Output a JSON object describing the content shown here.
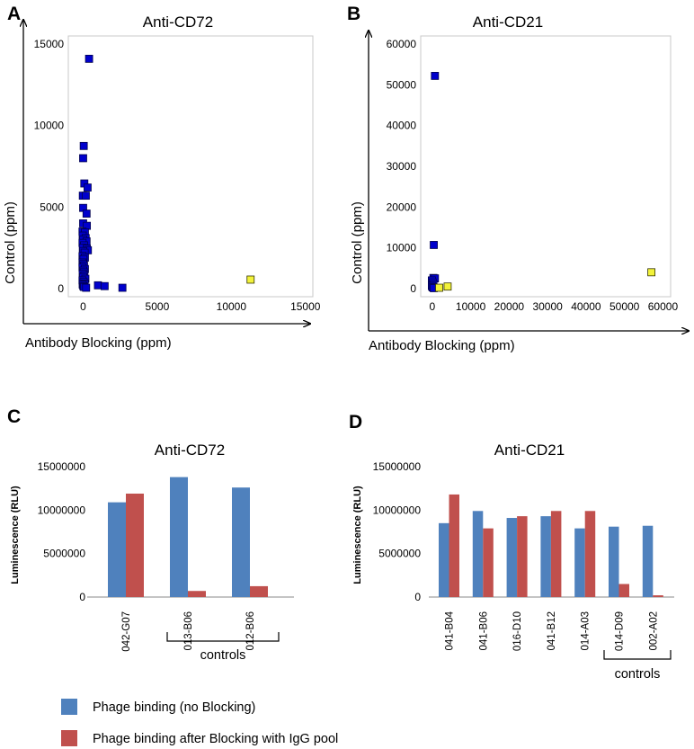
{
  "colors": {
    "scatter_blue": "#0000cc",
    "scatter_yellow": "#f2f23a",
    "bar_blue": "#4f81bd",
    "bar_red": "#c0504d"
  },
  "chart_data": [
    {
      "panel": "A",
      "type": "scatter",
      "title": "Anti-CD72",
      "xlabel": "Antibody Blocking (ppm)",
      "ylabel": "Control  (ppm)",
      "xlim": [
        -1000,
        15500
      ],
      "ylim": [
        -500,
        15500
      ],
      "xticks": [
        0,
        5000,
        10000,
        15000
      ],
      "yticks": [
        0,
        5000,
        10000,
        15000
      ],
      "series": [
        {
          "name": "blue",
          "points": [
            [
              400,
              14100
            ],
            [
              40,
              8750
            ],
            [
              0,
              8000
            ],
            [
              80,
              6450
            ],
            [
              300,
              6200
            ],
            [
              -20,
              5700
            ],
            [
              180,
              5700
            ],
            [
              0,
              4950
            ],
            [
              230,
              4600
            ],
            [
              0,
              4000
            ],
            [
              250,
              3850
            ],
            [
              -40,
              3500
            ],
            [
              120,
              3450
            ],
            [
              -30,
              3250
            ],
            [
              170,
              3100
            ],
            [
              0,
              3000
            ],
            [
              230,
              2900
            ],
            [
              -40,
              2800
            ],
            [
              60,
              2650
            ],
            [
              -20,
              2500
            ],
            [
              250,
              2450
            ],
            [
              320,
              2350
            ],
            [
              0,
              2300
            ],
            [
              100,
              2200
            ],
            [
              -40,
              2000
            ],
            [
              120,
              1900
            ],
            [
              20,
              1800
            ],
            [
              -40,
              1600
            ],
            [
              0,
              1500
            ],
            [
              60,
              1400
            ],
            [
              -40,
              1300
            ],
            [
              120,
              1200
            ],
            [
              0,
              1100
            ],
            [
              40,
              1000
            ],
            [
              -30,
              900
            ],
            [
              80,
              800
            ],
            [
              0,
              700
            ],
            [
              150,
              600
            ],
            [
              -40,
              500
            ],
            [
              30,
              400
            ],
            [
              100,
              300
            ],
            [
              -30,
              250
            ],
            [
              10,
              150
            ],
            [
              60,
              100
            ],
            [
              200,
              50
            ],
            [
              1000,
              200
            ],
            [
              1450,
              150
            ],
            [
              2650,
              50
            ]
          ]
        },
        {
          "name": "yellow",
          "points": [
            [
              11300,
              550
            ]
          ]
        }
      ]
    },
    {
      "panel": "B",
      "type": "scatter",
      "title": "Anti-CD21",
      "xlabel": "Antibody Blocking (ppm)",
      "ylabel": "Control  (ppm)",
      "xlim": [
        -3000,
        62000
      ],
      "ylim": [
        -2000,
        62000
      ],
      "xticks": [
        0,
        10000,
        20000,
        30000,
        40000,
        50000,
        60000
      ],
      "yticks": [
        0,
        10000,
        20000,
        30000,
        40000,
        50000,
        60000
      ],
      "series": [
        {
          "name": "blue",
          "points": [
            [
              700,
              52200
            ],
            [
              400,
              10700
            ],
            [
              300,
              2600
            ],
            [
              700,
              2500
            ],
            [
              -100,
              2000
            ],
            [
              100,
              1500
            ],
            [
              300,
              1000
            ],
            [
              -100,
              600
            ],
            [
              100,
              300
            ],
            [
              400,
              100
            ]
          ]
        },
        {
          "name": "yellow",
          "points": [
            [
              57000,
              4000
            ],
            [
              4000,
              500
            ],
            [
              1800,
              200
            ]
          ]
        }
      ]
    },
    {
      "panel": "C",
      "type": "bar",
      "title": "Anti-CD72",
      "ylabel": "Luminescence (RLU)",
      "ylim": [
        0,
        15000000
      ],
      "yticks": [
        0,
        5000000,
        10000000,
        15000000
      ],
      "categories": [
        "042-G07",
        "013-B06",
        "012-B06"
      ],
      "series": [
        {
          "name": "Phage binding  (no Blocking)",
          "values": [
            10900000,
            13800000,
            12600000
          ]
        },
        {
          "name": "Phage binding after Blocking with IgG pool",
          "values": [
            11900000,
            700000,
            1250000
          ]
        }
      ],
      "annotation": "controls"
    },
    {
      "panel": "D",
      "type": "bar",
      "title": "Anti-CD21",
      "ylabel": "Luminescence (RLU)",
      "ylim": [
        0,
        15000000
      ],
      "yticks": [
        0,
        5000000,
        10000000,
        15000000
      ],
      "categories": [
        "041-B04",
        "041-B06",
        "016-D10",
        "041-B12",
        "014-A03",
        "014-D09",
        "002-A02"
      ],
      "series": [
        {
          "name": "Phage binding  (no Blocking)",
          "values": [
            8500000,
            9900000,
            9100000,
            9300000,
            7900000,
            8100000,
            8200000
          ]
        },
        {
          "name": "Phage binding after Blocking with IgG pool",
          "values": [
            11800000,
            7900000,
            9300000,
            9900000,
            9900000,
            1500000,
            200000
          ]
        }
      ],
      "annotation": "controls"
    }
  ],
  "legend": [
    {
      "label": "Phage binding  (no Blocking)",
      "color": "#4f81bd"
    },
    {
      "label": "Phage binding after Blocking with IgG pool",
      "color": "#c0504d"
    }
  ]
}
